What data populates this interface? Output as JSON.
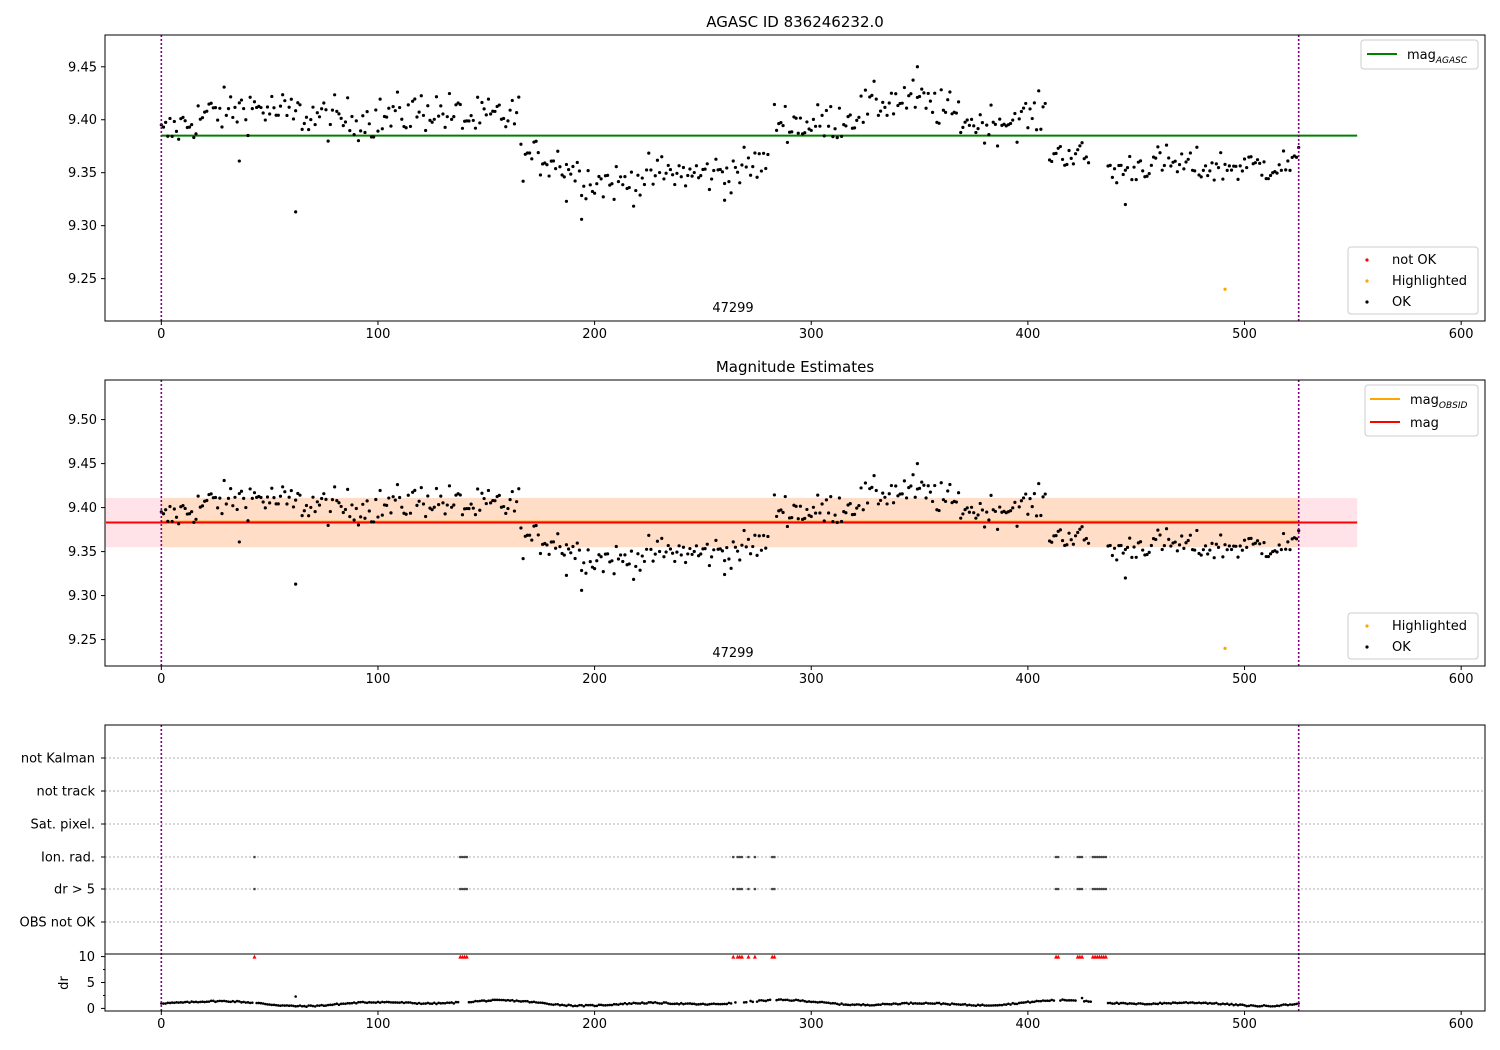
{
  "chart_data": [
    {
      "type": "scatter",
      "title": "AGASC ID 836246232.0",
      "xlim": [
        -26,
        611
      ],
      "ylim": [
        9.21,
        9.48
      ],
      "xticks": [
        0,
        100,
        200,
        300,
        400,
        500,
        600
      ],
      "yticks": [
        9.25,
        9.3,
        9.35,
        9.4,
        9.45
      ],
      "ytick_labels": [
        "9.25",
        "9.30",
        "9.35",
        "9.40",
        "9.45"
      ],
      "obsid_label": "47299",
      "obsid_label_x": 262,
      "obs_boundaries": [
        0,
        525
      ],
      "mag_agasc": 9.385,
      "mag_agasc_xrange": [
        0,
        552
      ],
      "highlighted_point": {
        "x": 491,
        "y": 9.24
      },
      "legend_top": [
        {
          "label": "mag",
          "sub": "AGASC",
          "color": "#008000"
        }
      ],
      "legend_bottom": [
        {
          "label": "not OK",
          "color": "#ff0000"
        },
        {
          "label": "Highlighted",
          "color": "#ffa500"
        },
        {
          "label": "OK",
          "color": "#000000"
        }
      ],
      "outliers": [
        {
          "x": 62,
          "y": 9.313
        },
        {
          "x": 36,
          "y": 9.361
        },
        {
          "x": 194,
          "y": 9.306
        },
        {
          "x": 260,
          "y": 9.324
        },
        {
          "x": 445,
          "y": 9.32
        },
        {
          "x": 187,
          "y": 9.323
        },
        {
          "x": 349,
          "y": 9.45
        }
      ],
      "segments": [
        {
          "x0": 0,
          "x1": 165,
          "mean": [
            9.385,
            9.405,
            9.412,
            9.405,
            9.4,
            9.402,
            9.41,
            9.4,
            9.405
          ],
          "spread": 0.02
        },
        {
          "x0": 166,
          "x1": 280,
          "mean": [
            9.365,
            9.362,
            9.342,
            9.34,
            9.35,
            9.348,
            9.352,
            9.36
          ],
          "spread": 0.018
        },
        {
          "x0": 283,
          "x1": 408,
          "mean": [
            9.4,
            9.395,
            9.4,
            9.415,
            9.42,
            9.41,
            9.395,
            9.4,
            9.405
          ],
          "spread": 0.018
        },
        {
          "x0": 410,
          "x1": 428,
          "mean": [
            9.37,
            9.365
          ],
          "spread": 0.014
        },
        {
          "x0": 437,
          "x1": 525,
          "mean": [
            9.35,
            9.36,
            9.355,
            9.356,
            9.358
          ],
          "spread": 0.016
        }
      ]
    },
    {
      "type": "scatter",
      "title": "Magnitude Estimates",
      "xlim": [
        -26,
        611
      ],
      "ylim": [
        9.22,
        9.545
      ],
      "xticks": [
        0,
        100,
        200,
        300,
        400,
        500,
        600
      ],
      "yticks": [
        9.25,
        9.3,
        9.35,
        9.4,
        9.45,
        9.5
      ],
      "ytick_labels": [
        "9.25",
        "9.30",
        "9.35",
        "9.40",
        "9.45",
        "9.50"
      ],
      "obsid_label": "47299",
      "mag": 9.383,
      "mag_band": [
        9.355,
        9.411
      ],
      "mag_obsid": 9.384,
      "mag_obsid_band": [
        9.355,
        9.411
      ],
      "mag_obsid_xrange": [
        0,
        525
      ],
      "mag_xrange": [
        -26,
        552
      ],
      "legend_top": [
        {
          "label": "mag",
          "sub": "OBSID",
          "color": "#ffa500"
        },
        {
          "label": "mag",
          "sub": "",
          "color": "#ff0000"
        }
      ],
      "legend_bottom": [
        {
          "label": "Highlighted",
          "color": "#ffa500"
        },
        {
          "label": "OK",
          "color": "#000000"
        }
      ]
    },
    {
      "type": "scatter",
      "title": "",
      "flag_rows": [
        "not Kalman",
        "not track",
        "Sat. pixel.",
        "Ion. rad.",
        "dr > 5",
        "OBS not OK"
      ],
      "flag_hits": [
        {
          "row": "Ion. rad.",
          "x": [
            43,
            138,
            139,
            140,
            141,
            264,
            266,
            267,
            268,
            271,
            274,
            282,
            283,
            413,
            414,
            423,
            424,
            425,
            430,
            431,
            432,
            433,
            434,
            435,
            436
          ]
        },
        {
          "row": "dr > 5",
          "x": [
            43,
            138,
            139,
            140,
            141,
            264,
            266,
            267,
            268,
            271,
            274,
            282,
            283,
            413,
            414,
            423,
            424,
            425,
            430,
            431,
            432,
            433,
            434,
            435,
            436
          ]
        }
      ],
      "dr_ylabel": "dr",
      "dr_yticks": [
        0,
        5,
        10
      ],
      "dr_ytick_labels": [
        "0",
        "5",
        "10"
      ],
      "dr_ylim": [
        -0.5,
        10.5
      ],
      "dr_clipped_x": [
        43,
        138,
        139,
        140,
        141,
        264,
        266,
        267,
        268,
        271,
        274,
        282,
        283,
        413,
        414,
        423,
        424,
        425,
        430,
        431,
        432,
        433,
        434,
        435,
        436
      ],
      "dr_spikes": [
        {
          "x": 62,
          "y": 2.3
        },
        {
          "x": 425,
          "y": 2.0
        }
      ],
      "xticks": [
        0,
        100,
        200,
        300,
        400,
        500,
        600
      ],
      "xlim": [
        -26,
        611
      ]
    }
  ],
  "colors": {
    "ok": "#000000",
    "not_ok": "#ff0000",
    "highlight": "#ffa500",
    "agasc": "#008000",
    "boundary": "#800080",
    "band_mag": "#ffc0cb",
    "band_obsid": "#ffdab9"
  }
}
